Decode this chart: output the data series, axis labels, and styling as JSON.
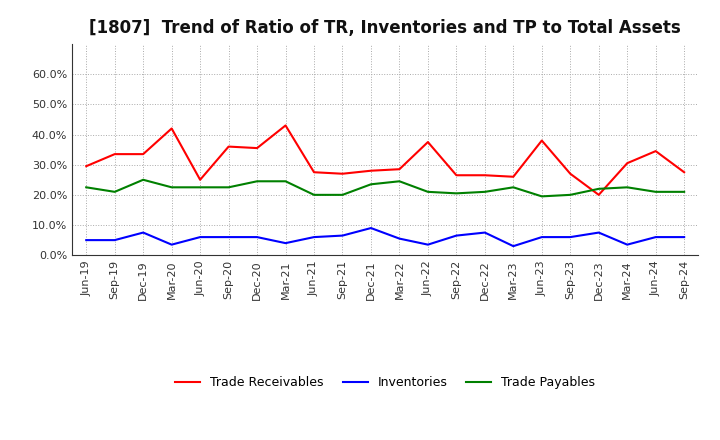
{
  "title": "[1807]  Trend of Ratio of TR, Inventories and TP to Total Assets",
  "x_labels": [
    "Jun-19",
    "Sep-19",
    "Dec-19",
    "Mar-20",
    "Jun-20",
    "Sep-20",
    "Dec-20",
    "Mar-21",
    "Jun-21",
    "Sep-21",
    "Dec-21",
    "Mar-22",
    "Jun-22",
    "Sep-22",
    "Dec-22",
    "Mar-23",
    "Jun-23",
    "Sep-23",
    "Dec-23",
    "Mar-24",
    "Jun-24",
    "Sep-24"
  ],
  "trade_receivables": [
    29.5,
    33.5,
    33.5,
    42.0,
    25.0,
    36.0,
    35.5,
    43.0,
    27.5,
    27.0,
    28.0,
    28.5,
    37.5,
    26.5,
    26.5,
    26.0,
    38.0,
    27.0,
    20.0,
    30.5,
    34.5,
    27.5
  ],
  "inventories": [
    5.0,
    5.0,
    7.5,
    3.5,
    6.0,
    6.0,
    6.0,
    4.0,
    6.0,
    6.5,
    9.0,
    5.5,
    3.5,
    6.5,
    7.5,
    3.0,
    6.0,
    6.0,
    7.5,
    3.5,
    6.0,
    6.0
  ],
  "trade_payables": [
    22.5,
    21.0,
    25.0,
    22.5,
    22.5,
    22.5,
    24.5,
    24.5,
    20.0,
    20.0,
    23.5,
    24.5,
    21.0,
    20.5,
    21.0,
    22.5,
    19.5,
    20.0,
    22.0,
    22.5,
    21.0,
    21.0
  ],
  "tr_color": "#FF0000",
  "inv_color": "#0000FF",
  "tp_color": "#008000",
  "ylim": [
    0.0,
    70.0
  ],
  "yticks": [
    0,
    10,
    20,
    30,
    40,
    50,
    60
  ],
  "background_color": "#FFFFFF",
  "grid_color": "#AAAAAA",
  "title_fontsize": 12,
  "legend_labels": [
    "Trade Receivables",
    "Inventories",
    "Trade Payables"
  ]
}
